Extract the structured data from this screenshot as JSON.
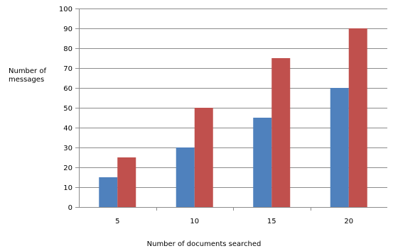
{
  "chart_data": {
    "type": "bar",
    "categories": [
      "5",
      "10",
      "15",
      "20"
    ],
    "series": [
      {
        "values": [
          15,
          30,
          45,
          60
        ],
        "color": "#4f81bd"
      },
      {
        "values": [
          25,
          50,
          75,
          90
        ],
        "color": "#c0504d"
      }
    ],
    "title": "",
    "xlabel": "Number of documents searched",
    "ylabel_lines": [
      "Number of",
      "messages"
    ],
    "ylim": [
      0,
      100
    ],
    "yticks": [
      0,
      10,
      20,
      30,
      40,
      50,
      60,
      70,
      80,
      90,
      100
    ],
    "grid": true,
    "legend": "none"
  }
}
